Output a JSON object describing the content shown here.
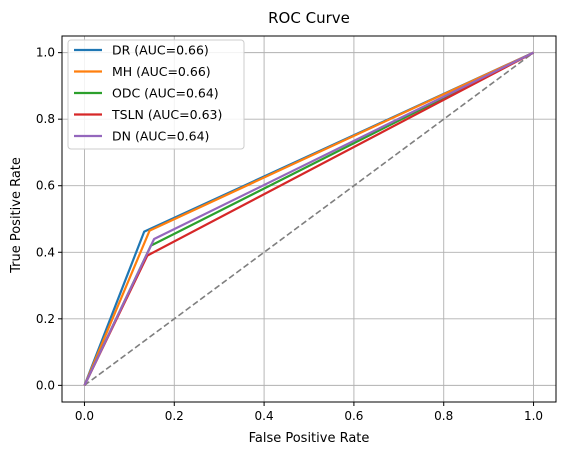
{
  "chart_data": {
    "type": "line",
    "title": "ROC Curve",
    "xlabel": "False Positive Rate",
    "ylabel": "True Positive Rate",
    "xlim": [
      -0.05,
      1.05
    ],
    "ylim": [
      -0.05,
      1.05
    ],
    "xticks": [
      "0.0",
      "0.2",
      "0.4",
      "0.6",
      "0.8",
      "1.0"
    ],
    "yticks": [
      "0.0",
      "0.2",
      "0.4",
      "0.6",
      "0.8",
      "1.0"
    ],
    "grid": true,
    "legend_position": "top-left",
    "series": [
      {
        "name": "DR (AUC=0.66)",
        "color": "#1f77b4",
        "x": [
          0,
          0.133,
          1
        ],
        "y": [
          0,
          0.462,
          1
        ]
      },
      {
        "name": "MH (AUC=0.66)",
        "color": "#ff7f0e",
        "x": [
          0,
          0.145,
          1
        ],
        "y": [
          0,
          0.465,
          1
        ]
      },
      {
        "name": "ODC (AUC=0.64)",
        "color": "#2ca02c",
        "x": [
          0,
          0.148,
          1
        ],
        "y": [
          0,
          0.42,
          1
        ]
      },
      {
        "name": "TSLN (AUC=0.63)",
        "color": "#d62728",
        "x": [
          0,
          0.14,
          1
        ],
        "y": [
          0,
          0.39,
          1
        ]
      },
      {
        "name": "DN (AUC=0.64)",
        "color": "#9467bd",
        "x": [
          0,
          0.155,
          1
        ],
        "y": [
          0,
          0.44,
          1
        ]
      }
    ],
    "reference_line": {
      "x": [
        0,
        1
      ],
      "y": [
        0,
        1
      ],
      "color": "#7f7f7f",
      "style": "dashed"
    }
  }
}
